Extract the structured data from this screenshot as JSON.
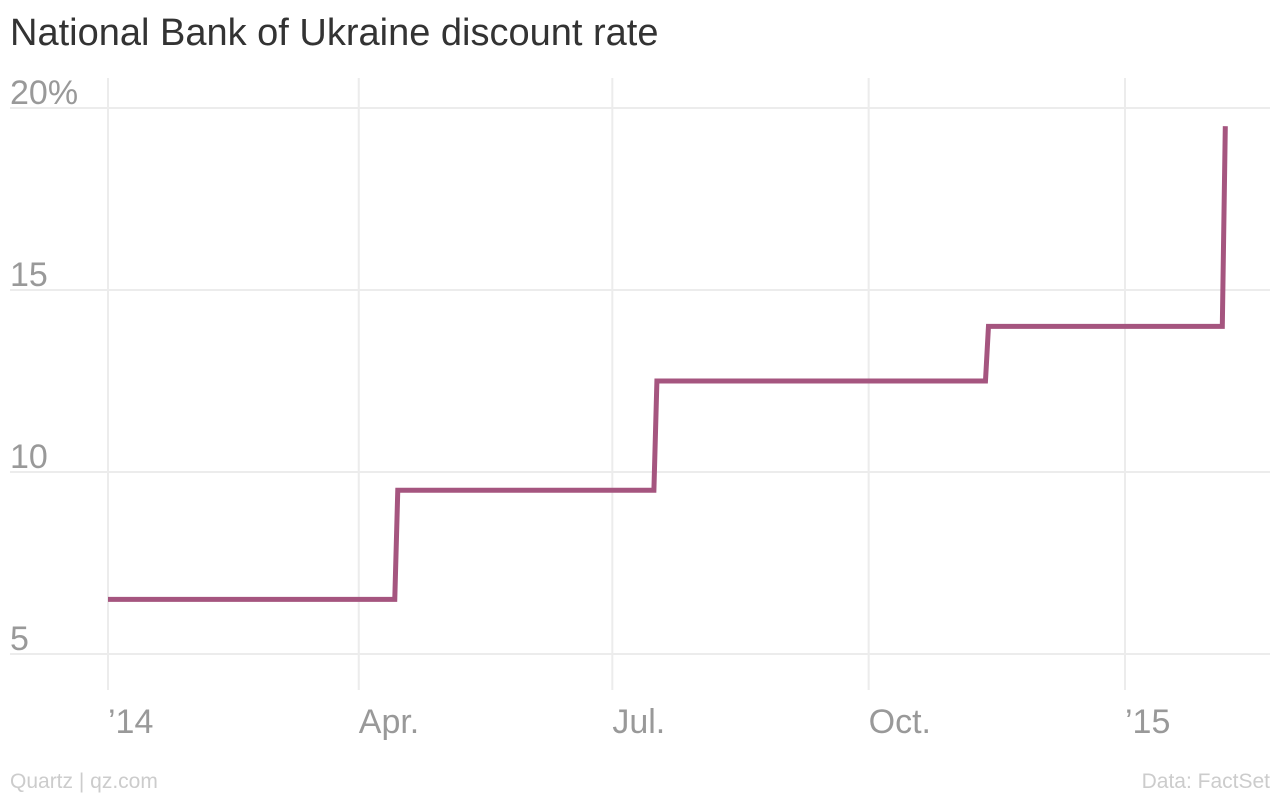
{
  "chart_data": {
    "type": "line",
    "title": "National Bank of Ukraine discount rate",
    "xlabel": "",
    "ylabel": "",
    "ylim": [
      4,
      21
    ],
    "xlim": [
      "2014-01-01",
      "2015-03-15"
    ],
    "y_ticks": [
      {
        "value": 5,
        "label": "5"
      },
      {
        "value": 10,
        "label": "10"
      },
      {
        "value": 15,
        "label": "15"
      },
      {
        "value": 20,
        "label": "20%"
      }
    ],
    "x_ticks": [
      {
        "date": "2014-01-01",
        "label": "’14"
      },
      {
        "date": "2014-04-01",
        "label": "Apr."
      },
      {
        "date": "2014-07-01",
        "label": "Jul."
      },
      {
        "date": "2014-10-01",
        "label": "Oct."
      },
      {
        "date": "2015-01-01",
        "label": "’15"
      }
    ],
    "grid": true,
    "line_color": "#a5557f",
    "step": true,
    "series": [
      {
        "points": [
          {
            "date": "2014-01-01",
            "value": 6.5
          },
          {
            "date": "2014-04-15",
            "value": 9.5
          },
          {
            "date": "2014-07-17",
            "value": 12.5
          },
          {
            "date": "2014-11-13",
            "value": 14
          },
          {
            "date": "2015-02-06",
            "value": 19.5
          }
        ]
      }
    ]
  },
  "footer": {
    "source": "Data: FactSet",
    "credit": "Quartz | qz.com"
  }
}
